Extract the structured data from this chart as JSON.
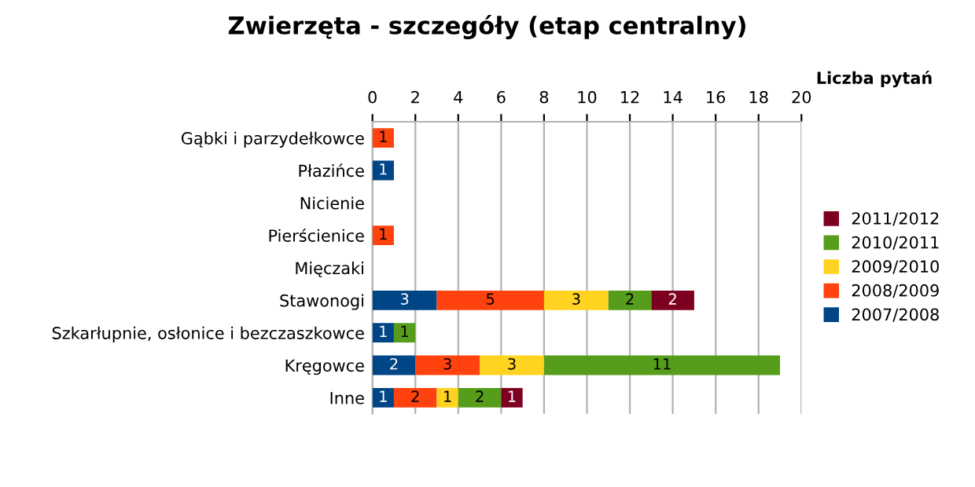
{
  "chart_data": {
    "type": "bar",
    "orientation": "horizontal",
    "stacked": true,
    "title": "Zwierzęta - szczegóły (etap centralny)",
    "xlabel": "Liczba pytań",
    "categories": [
      "Gąbki i parzydełkowce",
      "Płazińce",
      "Nicienie",
      "Pierścienice",
      "Mięczaki",
      "Stawonogi",
      "Szkarłupnie, osłonice i bezczaszkowce",
      "Kręgowce",
      "Inne"
    ],
    "series": [
      {
        "name": "2007/2008",
        "color": "#004586",
        "values": [
          null,
          1,
          null,
          null,
          null,
          3,
          1,
          2,
          1
        ]
      },
      {
        "name": "2008/2009",
        "color": "#ff420e",
        "values": [
          1,
          null,
          null,
          1,
          null,
          5,
          null,
          3,
          2
        ]
      },
      {
        "name": "2009/2010",
        "color": "#ffd320",
        "values": [
          null,
          null,
          null,
          null,
          null,
          3,
          null,
          3,
          1
        ]
      },
      {
        "name": "2010/2011",
        "color": "#579d1c",
        "values": [
          null,
          null,
          null,
          null,
          null,
          2,
          1,
          11,
          2
        ]
      },
      {
        "name": "2011/2012",
        "color": "#7e0021",
        "values": [
          null,
          null,
          null,
          null,
          null,
          2,
          null,
          null,
          1
        ]
      }
    ],
    "xlim": [
      0,
      20
    ],
    "xticks": [
      0,
      2,
      4,
      6,
      8,
      10,
      12,
      14,
      16,
      18,
      20
    ],
    "grid": "x",
    "legend": "right",
    "data_labels": true
  }
}
